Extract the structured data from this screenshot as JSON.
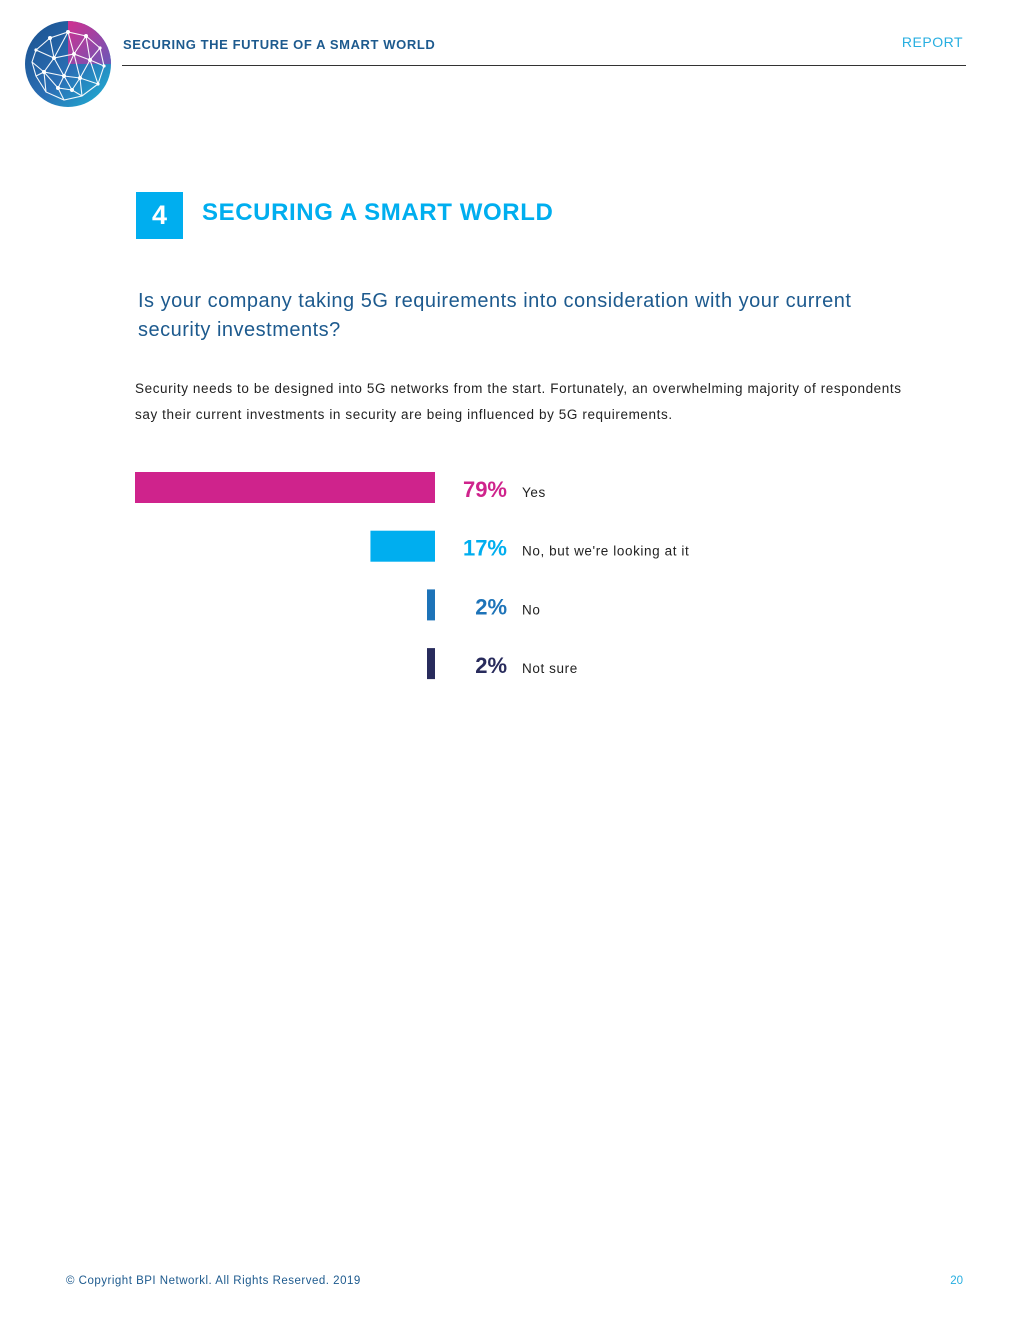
{
  "header": {
    "title": "SECURING THE FUTURE OF A SMART WORLD",
    "report_label": "REPORT"
  },
  "section": {
    "number": "4",
    "title": "SECURING A SMART WORLD"
  },
  "question": "Is your company taking 5G requirements into consideration with your current security investments?",
  "intro": "Security needs to be designed into 5G networks from the start. Fortunately, an overwhelming majority of respondents say their current investments in security are being influenced by 5G requirements.",
  "chart_data": {
    "type": "bar",
    "orientation": "horizontal",
    "title": "",
    "xlabel": "",
    "ylabel": "",
    "xlim": [
      0,
      79
    ],
    "grid": false,
    "categories": [
      "Yes",
      "No, but we're looking at it",
      "No",
      "Not sure"
    ],
    "values": [
      79,
      17,
      2,
      2
    ],
    "value_labels": [
      "79%",
      "17%",
      "2%",
      "2%"
    ],
    "colors": [
      "#cf238c",
      "#00aeef",
      "#1d73b8",
      "#282b5c"
    ]
  },
  "footer": {
    "copyright": "© Copyright BPI Networkl. All Rights Reserved. 2019",
    "page_number": "20"
  }
}
